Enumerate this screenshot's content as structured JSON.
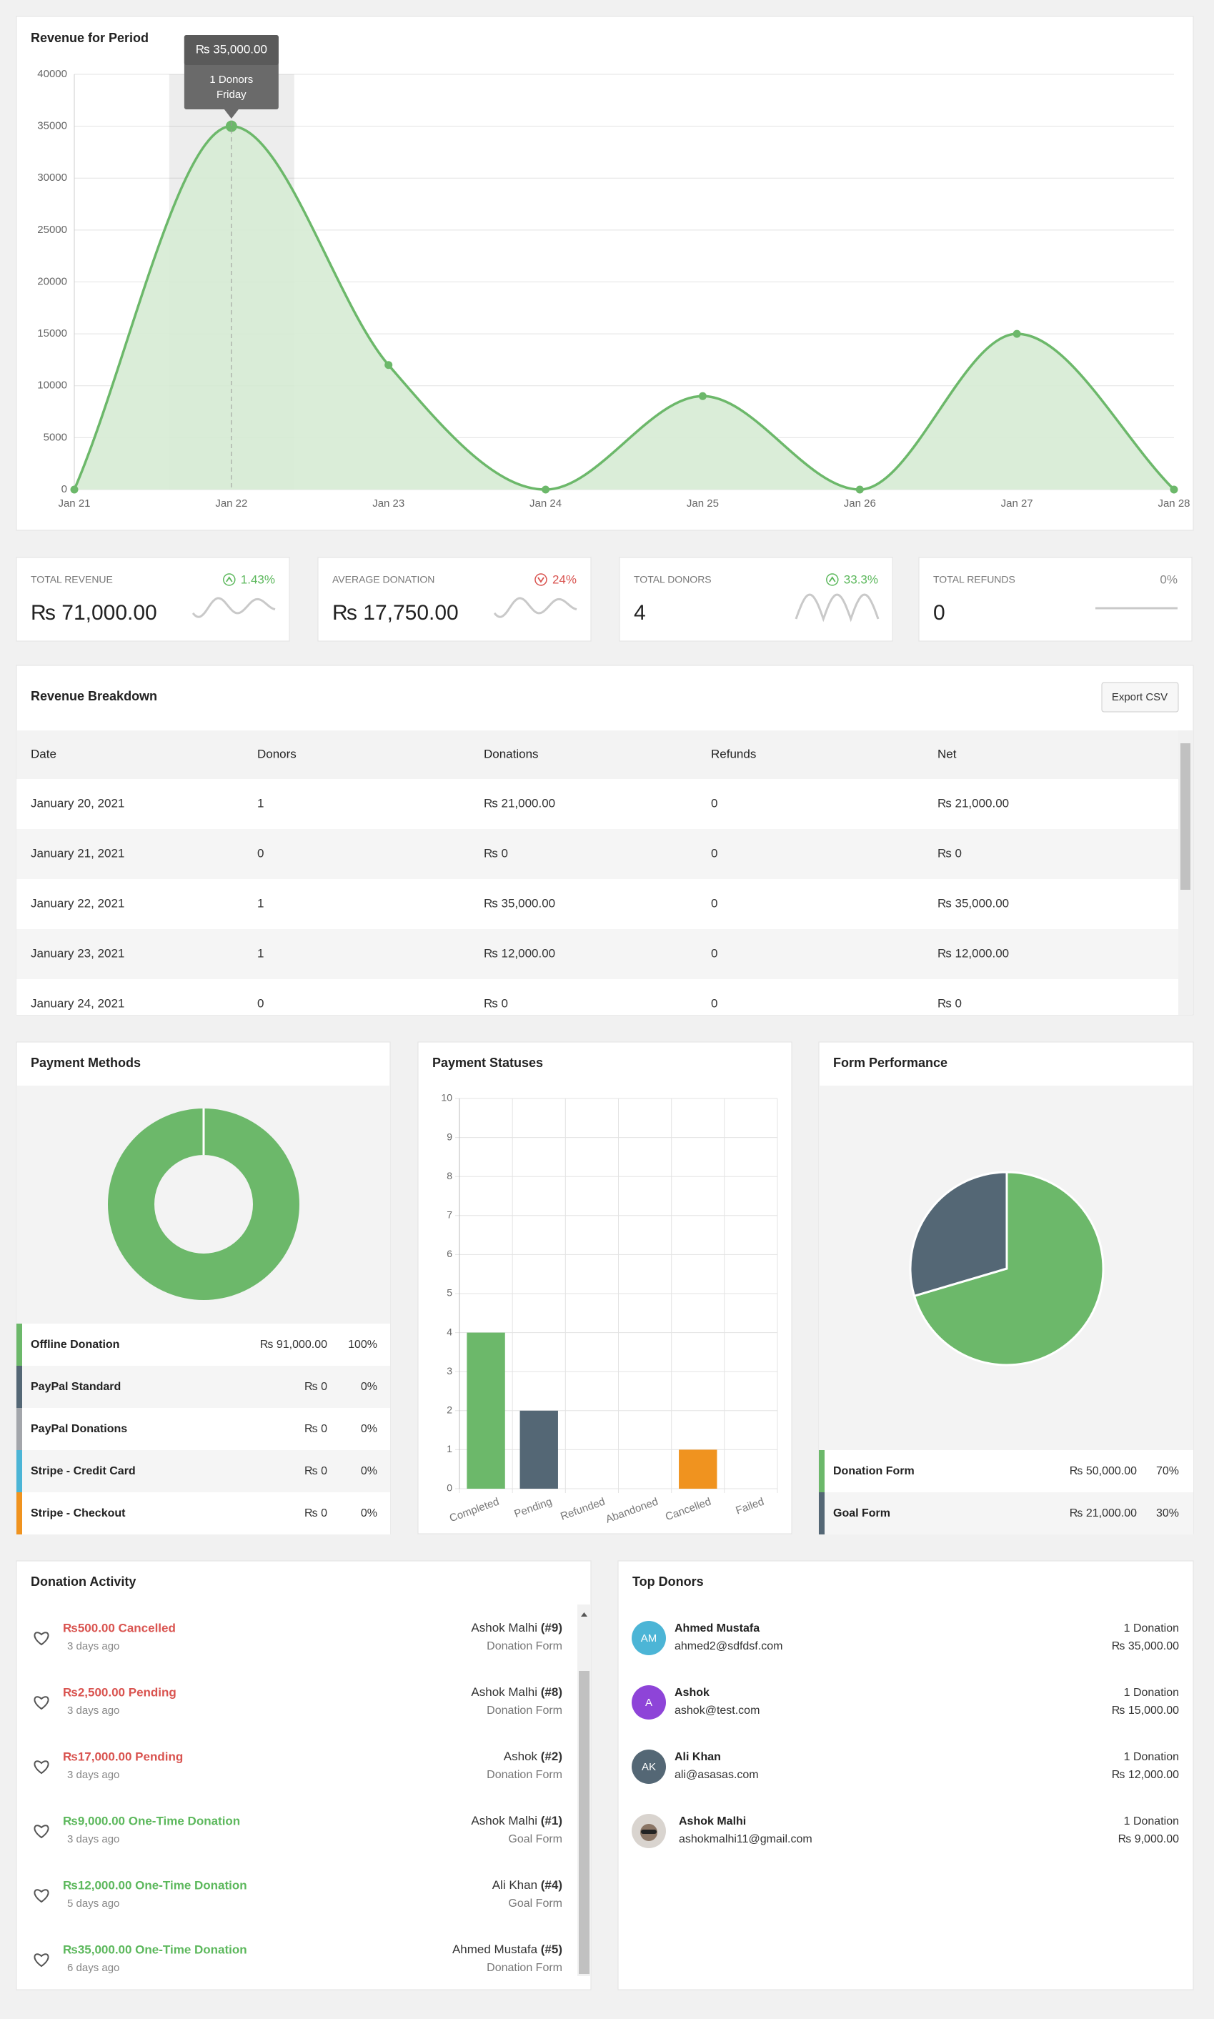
{
  "chart_data": [
    {
      "type": "area",
      "title": "Revenue for Period",
      "x": [
        "Jan 21",
        "Jan 22",
        "Jan 23",
        "Jan 24",
        "Jan 25",
        "Jan 26",
        "Jan 27",
        "Jan 28"
      ],
      "values": [
        0,
        35000,
        12000,
        0,
        9000,
        0,
        15000,
        0
      ],
      "color": "#6cb86a",
      "fill": "#d6ebd4",
      "ylim": [
        0,
        40000
      ],
      "yticks": [
        0,
        5000,
        10000,
        15000,
        20000,
        25000,
        30000,
        35000,
        40000
      ],
      "grid": true,
      "tooltip": {
        "at": "Jan 22",
        "title": "₨ 35,000.00",
        "lines": [
          "1 Donors",
          "Friday"
        ]
      }
    },
    {
      "type": "donut",
      "title": "Payment Methods",
      "categories": [
        "Offline Donation",
        "PayPal Standard",
        "PayPal Donations",
        "Stripe - Credit Card",
        "Stripe - Checkout"
      ],
      "values": [
        91000,
        0,
        0,
        0,
        0
      ],
      "value_labels": [
        "₨ 91,000.00",
        "₨ 0",
        "₨ 0",
        "₨ 0",
        "₨ 0"
      ],
      "share_labels": [
        "100%",
        "0%",
        "0%",
        "0%",
        "0%"
      ],
      "colors": [
        "#6cb86a",
        "#546775",
        "#a3a6ab",
        "#4cb5d6",
        "#f0931f"
      ]
    },
    {
      "type": "bar",
      "title": "Payment Statuses",
      "categories": [
        "Completed",
        "Pending",
        "Refunded",
        "Abandoned",
        "Cancelled",
        "Failed"
      ],
      "values": [
        4,
        2,
        0,
        0,
        1,
        0
      ],
      "colors": [
        "#6cb86a",
        "#546775",
        "#a3a6ab",
        "#4cb5d6",
        "#f0931f",
        "#d9534f"
      ],
      "ylim": [
        0,
        10
      ],
      "yticks": [
        0,
        1,
        2,
        3,
        4,
        5,
        6,
        7,
        8,
        9,
        10
      ],
      "grid": true
    },
    {
      "type": "pie",
      "title": "Form Performance",
      "categories": [
        "Donation Form",
        "Goal Form"
      ],
      "values": [
        50000,
        21000
      ],
      "value_labels": [
        "₨ 50,000.00",
        "₨ 21,000.00"
      ],
      "share_labels": [
        "70%",
        "30%"
      ],
      "colors": [
        "#6cb86a",
        "#546775"
      ]
    }
  ],
  "stats": [
    {
      "label": "TOTAL REVENUE",
      "value": "₨ 71,000.00",
      "change": "1.43%",
      "trend": "up"
    },
    {
      "label": "AVERAGE DONATION",
      "value": "₨ 17,750.00",
      "change": "24%",
      "trend": "down"
    },
    {
      "label": "TOTAL DONORS",
      "value": "4",
      "change": "33.3%",
      "trend": "up"
    },
    {
      "label": "TOTAL REFUNDS",
      "value": "0",
      "change": "0%",
      "trend": "flat"
    }
  ],
  "breakdown": {
    "title": "Revenue Breakdown",
    "button": "Export CSV",
    "columns": [
      "Date",
      "Donors",
      "Donations",
      "Refunds",
      "Net"
    ],
    "rows": [
      [
        "January 20, 2021",
        "1",
        "₨ 21,000.00",
        "0",
        "₨ 21,000.00"
      ],
      [
        "January 21, 2021",
        "0",
        "₨ 0",
        "0",
        "₨ 0"
      ],
      [
        "January 22, 2021",
        "1",
        "₨ 35,000.00",
        "0",
        "₨ 35,000.00"
      ],
      [
        "January 23, 2021",
        "1",
        "₨ 12,000.00",
        "0",
        "₨ 12,000.00"
      ],
      [
        "January 24, 2021",
        "0",
        "₨ 0",
        "0",
        "₨ 0"
      ]
    ]
  },
  "activity": {
    "title": "Donation Activity",
    "items": [
      {
        "amount": "₨500.00 Cancelled",
        "color": "#d9534f",
        "time": "3 days ago",
        "donor": "Ashok Malhi",
        "id": "(#9)",
        "form": "Donation Form"
      },
      {
        "amount": "₨2,500.00 Pending",
        "color": "#d9534f",
        "time": "3 days ago",
        "donor": "Ashok Malhi",
        "id": "(#8)",
        "form": "Donation Form"
      },
      {
        "amount": "₨17,000.00 Pending",
        "color": "#d9534f",
        "time": "3 days ago",
        "donor": "Ashok",
        "id": "(#2)",
        "form": "Donation Form"
      },
      {
        "amount": "₨9,000.00 One-Time Donation",
        "color": "#5cb85c",
        "time": "3 days ago",
        "donor": "Ashok Malhi",
        "id": "(#1)",
        "form": "Goal Form"
      },
      {
        "amount": "₨12,000.00 One-Time Donation",
        "color": "#5cb85c",
        "time": "5 days ago",
        "donor": "Ali Khan",
        "id": "(#4)",
        "form": "Goal Form"
      },
      {
        "amount": "₨35,000.00 One-Time Donation",
        "color": "#5cb85c",
        "time": "6 days ago",
        "donor": "Ahmed Mustafa",
        "id": "(#5)",
        "form": "Donation Form"
      }
    ]
  },
  "top_donors": {
    "title": "Top Donors",
    "items": [
      {
        "initials": "AM",
        "color": "#4cb5d6",
        "name": "Ahmed Mustafa",
        "email": "ahmed2@sdfdsf.com",
        "count": "1 Donation",
        "amount": "₨ 35,000.00"
      },
      {
        "initials": "A",
        "color": "#8e44d8",
        "name": "Ashok",
        "email": "ashok@test.com",
        "count": "1 Donation",
        "amount": "₨ 15,000.00"
      },
      {
        "initials": "AK",
        "color": "#546775",
        "name": "Ali Khan",
        "email": "ali@asasas.com",
        "count": "1 Donation",
        "amount": "₨ 12,000.00"
      },
      {
        "photo": true,
        "name": "Ashok Malhi",
        "email": "ashokmalhi11@gmail.com",
        "count": "1 Donation",
        "amount": "₨ 9,000.00"
      }
    ]
  }
}
